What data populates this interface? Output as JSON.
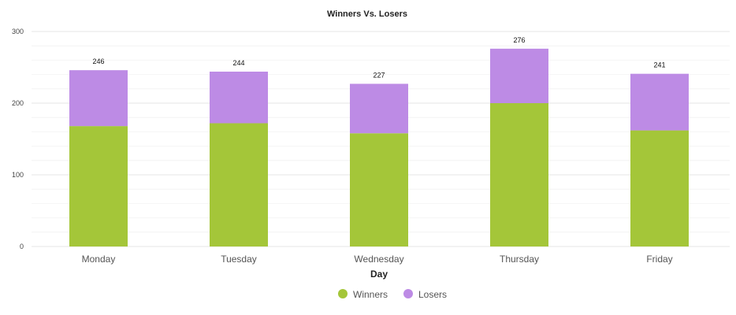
{
  "chart_data": {
    "type": "bar",
    "stacked": true,
    "title": "Winners Vs. Losers",
    "xlabel": "Day",
    "ylabel": "",
    "categories": [
      "Monday",
      "Tuesday",
      "Wednesday",
      "Thursday",
      "Friday"
    ],
    "series": [
      {
        "name": "Winners",
        "color": "#a4c639",
        "values": [
          168,
          172,
          158,
          200,
          162
        ]
      },
      {
        "name": "Losers",
        "color": "#bd8be5",
        "values": [
          78,
          72,
          69,
          76,
          79
        ]
      }
    ],
    "totals": [
      246,
      244,
      227,
      276,
      241
    ],
    "ylim": [
      0,
      300
    ],
    "yticks": [
      0,
      100,
      200,
      300
    ],
    "grid": true,
    "legend_position": "bottom-center"
  }
}
